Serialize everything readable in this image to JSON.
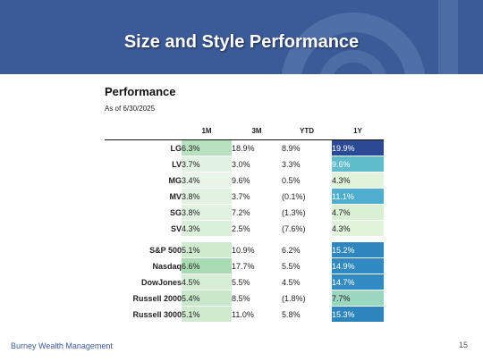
{
  "slide": {
    "title": "Size and Style Performance"
  },
  "section": {
    "title": "Performance",
    "as_of": "As of 6/30/2025"
  },
  "table": {
    "columns": [
      "1M",
      "3M",
      "YTD",
      "1Y"
    ],
    "groups": [
      [
        {
          "label": "LG",
          "values": [
            "6.3%",
            "18.9%",
            "8.9%",
            "19.9%"
          ],
          "colors": [
            "#b7e1bf",
            "#ffffff",
            "#ffffff",
            "#2c4a94"
          ]
        },
        {
          "label": "LV",
          "values": [
            "3.7%",
            "3.0%",
            "3.3%",
            "9.6%"
          ],
          "colors": [
            "#e3f3e3",
            "#ffffff",
            "#ffffff",
            "#5ebccc"
          ]
        },
        {
          "label": "MG",
          "values": [
            "3.4%",
            "9.6%",
            "0.5%",
            "4.3%"
          ],
          "colors": [
            "#e8f5e8",
            "#ffffff",
            "#ffffff",
            "#e1f3da"
          ]
        },
        {
          "label": "MV",
          "values": [
            "3.8%",
            "3.7%",
            "(0.1%)",
            "11.1%"
          ],
          "colors": [
            "#e1f2e1",
            "#ffffff",
            "#ffffff",
            "#50aed0"
          ]
        },
        {
          "label": "SG",
          "values": [
            "3.8%",
            "7.2%",
            "(1.3%)",
            "4.7%"
          ],
          "colors": [
            "#e1f2e1",
            "#ffffff",
            "#ffffff",
            "#d9f0d5"
          ]
        },
        {
          "label": "SV",
          "values": [
            "4.3%",
            "2.5%",
            "(7.6%)",
            "4.3%"
          ],
          "colors": [
            "#daf0da",
            "#ffffff",
            "#ffffff",
            "#e1f3da"
          ]
        }
      ],
      [
        {
          "label": "S&P 500",
          "values": [
            "5.1%",
            "10.9%",
            "6.2%",
            "15.2%"
          ],
          "colors": [
            "#cfeacf",
            "#ffffff",
            "#ffffff",
            "#2f86bf"
          ]
        },
        {
          "label": "Nasdaq",
          "values": [
            "6.6%",
            "17.7%",
            "5.5%",
            "14.9%"
          ],
          "colors": [
            "#a8dbb2",
            "#ffffff",
            "#ffffff",
            "#3089c1"
          ]
        },
        {
          "label": "DowJones",
          "values": [
            "4.5%",
            "5.5%",
            "4.5%",
            "14.7%"
          ],
          "colors": [
            "#d6eed6",
            "#ffffff",
            "#ffffff",
            "#318bc2"
          ]
        },
        {
          "label": "Russell 2000",
          "values": [
            "5.4%",
            "8.5%",
            "(1.8%)",
            "7.7%"
          ],
          "colors": [
            "#c9e8cb",
            "#ffffff",
            "#ffffff",
            "#9ad6c0"
          ]
        },
        {
          "label": "Russell 3000",
          "values": [
            "5.1%",
            "11.0%",
            "5.8%",
            "15.3%"
          ],
          "colors": [
            "#cfeacf",
            "#ffffff",
            "#ffffff",
            "#2e85be"
          ]
        }
      ]
    ]
  },
  "footer": {
    "company": "Burney Wealth Management",
    "page_number": "15"
  },
  "colors": {
    "banner": "#3b5a98",
    "accent": "#3b5a98"
  }
}
